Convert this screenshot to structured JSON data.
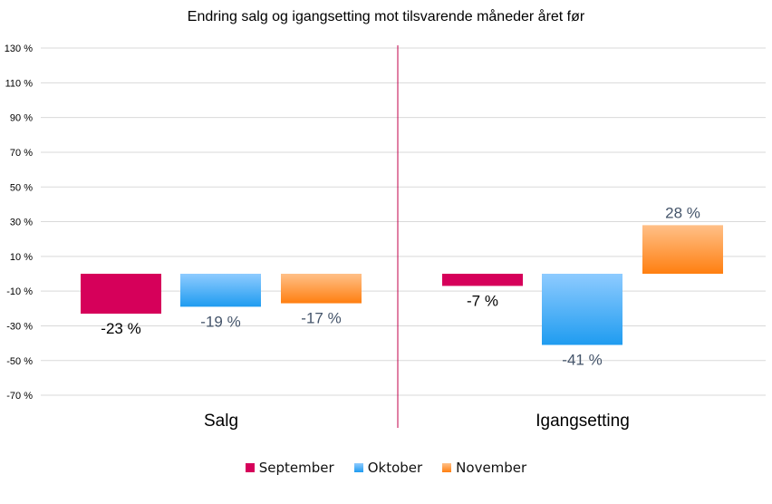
{
  "chart_data": {
    "type": "bar",
    "title": "Endring salg og igangsetting mot tilsvarende måneder året før",
    "categories": [
      "Salg",
      "Igangsetting"
    ],
    "series": [
      {
        "name": "September",
        "values": [
          -23,
          -7
        ],
        "labels": [
          "-23 %",
          "-7 %"
        ],
        "color": "#d6005a",
        "color2": "#d6005a"
      },
      {
        "name": "Oktober",
        "values": [
          -19,
          -41
        ],
        "labels": [
          "-19 %",
          "-41 %"
        ],
        "color": "#8ecbff",
        "color2": "#1f9cf0"
      },
      {
        "name": "November",
        "values": [
          -17,
          28
        ],
        "labels": [
          "-17 %",
          "28 %"
        ],
        "color": "#ffc088",
        "color2": "#ff7f10"
      }
    ],
    "ylim": [
      -70,
      130
    ],
    "yticks": [
      130,
      110,
      90,
      70,
      50,
      30,
      10,
      -10,
      -30,
      -50,
      -70
    ],
    "ytick_labels": [
      "130 %",
      "110 %",
      "90 %",
      "70 %",
      "50 %",
      "30 %",
      "10 %",
      "-10 %",
      "-30 %",
      "-50 %",
      "-70 %"
    ],
    "grid": true,
    "legend_position": "bottom",
    "divider_color": "#c0004a"
  }
}
